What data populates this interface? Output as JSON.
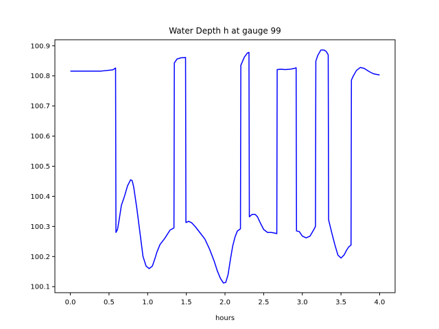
{
  "chart_data": {
    "type": "line",
    "title": "Water Depth h at gauge 99",
    "xlabel": "hours",
    "ylabel": "",
    "xlim": [
      -0.2,
      4.2
    ],
    "ylim": [
      100.08,
      100.92
    ],
    "xticks": [
      0.0,
      0.5,
      1.0,
      1.5,
      2.0,
      2.5,
      3.0,
      3.5,
      4.0
    ],
    "xtick_labels": [
      "0.0",
      "0.5",
      "1.0",
      "1.5",
      "2.0",
      "2.5",
      "3.0",
      "3.5",
      "4.0"
    ],
    "yticks": [
      100.1,
      100.2,
      100.3,
      100.4,
      100.5,
      100.6,
      100.7,
      100.8,
      100.9
    ],
    "ytick_labels": [
      "100.1",
      "100.2",
      "100.3",
      "100.4",
      "100.5",
      "100.6",
      "100.7",
      "100.8",
      "100.9"
    ],
    "grid": false,
    "series": [
      {
        "color": "#0000ff",
        "x": [
          0.0,
          0.2,
          0.4,
          0.55,
          0.585,
          0.59,
          0.61,
          0.63,
          0.66,
          0.7,
          0.74,
          0.78,
          0.8,
          0.82,
          0.86,
          0.9,
          0.94,
          0.98,
          1.02,
          1.06,
          1.09,
          1.12,
          1.16,
          1.22,
          1.29,
          1.34,
          1.345,
          1.38,
          1.43,
          1.49,
          1.495,
          1.53,
          1.57,
          1.62,
          1.68,
          1.74,
          1.8,
          1.86,
          1.9,
          1.94,
          1.98,
          2.01,
          2.04,
          2.07,
          2.1,
          2.13,
          2.16,
          2.2,
          2.205,
          2.25,
          2.29,
          2.31,
          2.315,
          2.35,
          2.39,
          2.42,
          2.46,
          2.5,
          2.55,
          2.6,
          2.64,
          2.67,
          2.675,
          2.72,
          2.78,
          2.84,
          2.9,
          2.92,
          2.925,
          2.96,
          3.0,
          3.05,
          3.1,
          3.15,
          3.17,
          3.175,
          3.2,
          3.24,
          3.28,
          3.31,
          3.335,
          3.34,
          3.38,
          3.42,
          3.46,
          3.5,
          3.54,
          3.57,
          3.6,
          3.63,
          3.635,
          3.66,
          3.7,
          3.75,
          3.8,
          3.86,
          3.92,
          4.0
        ],
        "y": [
          100.816,
          100.816,
          100.816,
          100.82,
          100.826,
          100.28,
          100.29,
          100.32,
          100.37,
          100.4,
          100.435,
          100.455,
          100.452,
          100.43,
          100.36,
          100.28,
          100.2,
          100.168,
          100.16,
          100.168,
          100.19,
          100.215,
          100.24,
          100.26,
          100.288,
          100.295,
          100.843,
          100.856,
          100.86,
          100.861,
          100.313,
          100.317,
          100.312,
          100.298,
          100.278,
          100.258,
          100.225,
          100.185,
          100.153,
          100.128,
          100.112,
          100.114,
          100.14,
          100.19,
          100.235,
          100.265,
          100.285,
          100.292,
          100.835,
          100.862,
          100.876,
          100.878,
          100.332,
          100.34,
          100.34,
          100.332,
          100.31,
          100.29,
          100.28,
          100.28,
          100.278,
          100.276,
          100.821,
          100.822,
          100.821,
          100.822,
          100.825,
          100.827,
          100.285,
          100.283,
          100.268,
          100.262,
          100.268,
          100.29,
          100.3,
          100.849,
          100.868,
          100.886,
          100.886,
          100.881,
          100.87,
          100.322,
          100.28,
          100.24,
          100.205,
          100.195,
          100.205,
          100.22,
          100.232,
          100.238,
          100.786,
          100.8,
          100.818,
          100.828,
          100.825,
          100.815,
          100.807,
          100.803
        ]
      }
    ]
  }
}
